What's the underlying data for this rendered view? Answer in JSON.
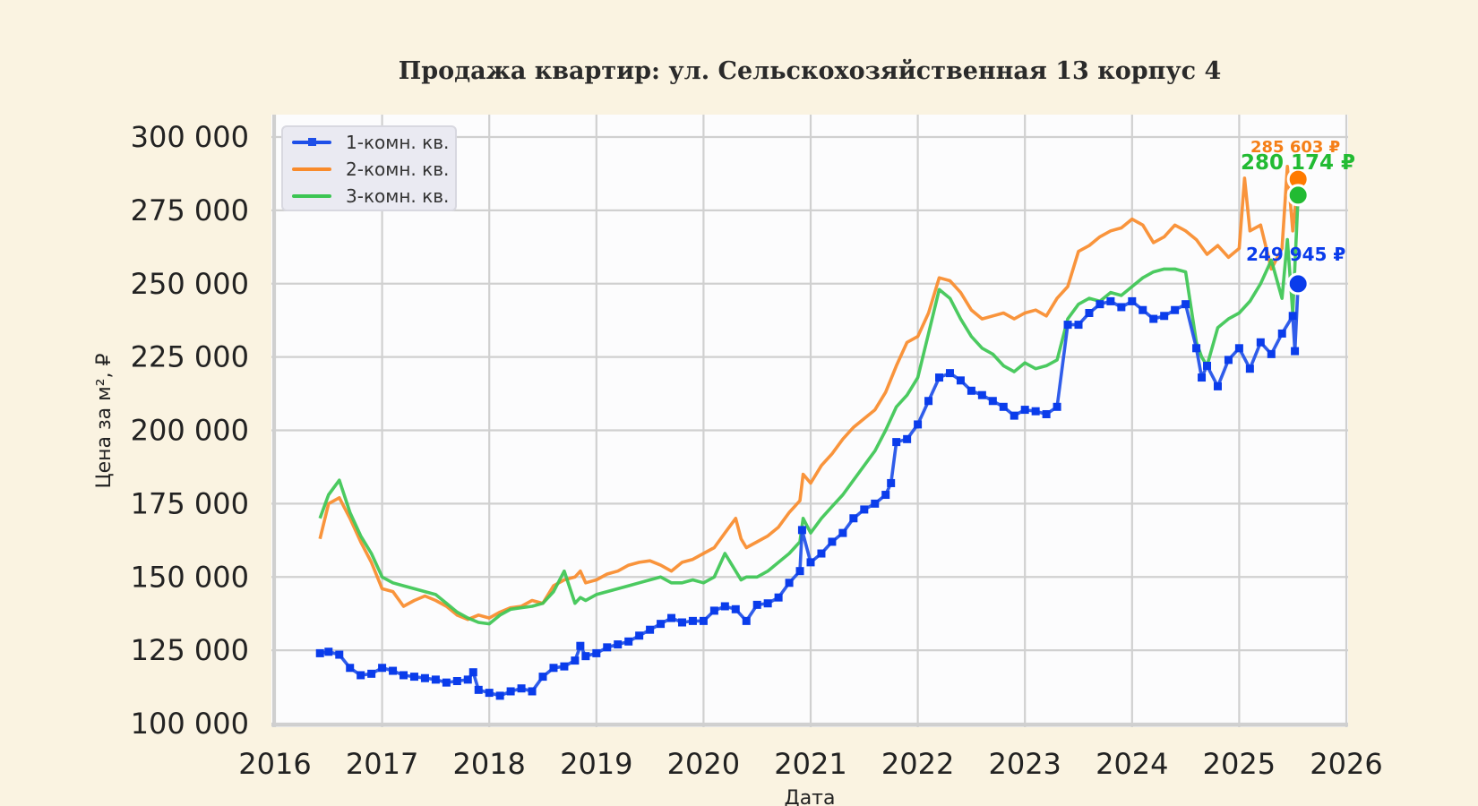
{
  "title": "Продажа квартир: ул. Сельскохозяйственная 13 корпус 4",
  "legend": [
    {
      "label": "1-комн. кв.",
      "color": "#1E4FE8",
      "marker": "square"
    },
    {
      "label": "2-комн. кв.",
      "color": "#F98B2B",
      "marker": "none"
    },
    {
      "label": "3-комн. кв.",
      "color": "#3CC553",
      "marker": "none"
    }
  ],
  "annotations": [
    {
      "series": "2-комн. кв.",
      "text": "285 603 ₽",
      "color": "#F57F17",
      "dot_color": "#FF7A00"
    },
    {
      "series": "3-комн. кв.",
      "text": "280 174 ₽",
      "color": "#22BB33",
      "dot_color": "#22BB33"
    },
    {
      "series": "1-комн. кв.",
      "text": "249 945 ₽",
      "color": "#0A3CEB",
      "dot_color": "#0A3CEB"
    }
  ],
  "chart_data": {
    "type": "line",
    "title": "Продажа квартир: ул. Сельскохозяйственная 13 корпус 4",
    "xlabel": "Дата",
    "ylabel": "Цена за м², ₽",
    "xlim": [
      2016,
      2026
    ],
    "ylim": [
      100000,
      300000
    ],
    "x_ticks": [
      "2016",
      "2017",
      "2018",
      "2019",
      "2020",
      "2021",
      "2022",
      "2023",
      "2024",
      "2025",
      "2026"
    ],
    "y_ticks": [
      "100 000",
      "125 000",
      "150 000",
      "175 000",
      "200 000",
      "225 000",
      "250 000",
      "275 000",
      "300 000"
    ],
    "y_tick_values": [
      100000,
      125000,
      150000,
      175000,
      200000,
      225000,
      250000,
      275000,
      300000
    ],
    "grid": true,
    "legend_position": "upper left",
    "series": [
      {
        "name": "1-комн. кв.",
        "color": "#1E4FE8",
        "marker": "square",
        "x": [
          2016.42,
          2016.5,
          2016.6,
          2016.7,
          2016.8,
          2016.9,
          2017.0,
          2017.1,
          2017.2,
          2017.3,
          2017.4,
          2017.5,
          2017.6,
          2017.7,
          2017.8,
          2017.85,
          2017.9,
          2018.0,
          2018.1,
          2018.2,
          2018.3,
          2018.4,
          2018.5,
          2018.6,
          2018.7,
          2018.8,
          2018.85,
          2018.9,
          2019.0,
          2019.1,
          2019.2,
          2019.3,
          2019.4,
          2019.5,
          2019.6,
          2019.7,
          2019.8,
          2019.9,
          2020.0,
          2020.1,
          2020.2,
          2020.3,
          2020.4,
          2020.5,
          2020.6,
          2020.7,
          2020.8,
          2020.9,
          2020.92,
          2021.0,
          2021.1,
          2021.2,
          2021.3,
          2021.4,
          2021.5,
          2021.6,
          2021.7,
          2021.75,
          2021.8,
          2021.9,
          2022.0,
          2022.1,
          2022.2,
          2022.3,
          2022.4,
          2022.5,
          2022.6,
          2022.7,
          2022.8,
          2022.9,
          2023.0,
          2023.1,
          2023.2,
          2023.3,
          2023.4,
          2023.5,
          2023.6,
          2023.7,
          2023.8,
          2023.9,
          2024.0,
          2024.1,
          2024.2,
          2024.3,
          2024.4,
          2024.5,
          2024.6,
          2024.65,
          2024.7,
          2024.8,
          2024.9,
          2025.0,
          2025.1,
          2025.2,
          2025.3,
          2025.4,
          2025.5,
          2025.52,
          2025.55
        ],
        "y": [
          124000,
          124500,
          123500,
          119000,
          116500,
          117000,
          119000,
          118000,
          116500,
          116000,
          115500,
          115000,
          114000,
          114500,
          115000,
          117500,
          111500,
          110500,
          109500,
          111000,
          112000,
          111000,
          116000,
          119000,
          119500,
          121500,
          126500,
          123000,
          124000,
          126000,
          127000,
          128000,
          130000,
          132000,
          134000,
          136000,
          134500,
          135000,
          135000,
          138500,
          140000,
          139000,
          135000,
          140500,
          141000,
          143000,
          148000,
          152000,
          166000,
          155000,
          158000,
          162000,
          165000,
          170000,
          173000,
          175000,
          178000,
          182000,
          196000,
          197000,
          202000,
          210000,
          218000,
          219500,
          217000,
          213500,
          212000,
          210000,
          208000,
          205000,
          207000,
          206500,
          205500,
          208000,
          236000,
          236000,
          240000,
          243000,
          244000,
          242000,
          244000,
          241000,
          238000,
          239000,
          241000,
          243000,
          228000,
          218000,
          222000,
          215000,
          224000,
          228000,
          221000,
          230000,
          226000,
          233000,
          239000,
          227000,
          249945
        ]
      },
      {
        "name": "2-комн. кв.",
        "color": "#F98B2B",
        "marker": "none",
        "x": [
          2016.42,
          2016.5,
          2016.6,
          2016.7,
          2016.8,
          2016.9,
          2017.0,
          2017.1,
          2017.2,
          2017.3,
          2017.4,
          2017.5,
          2017.6,
          2017.7,
          2017.8,
          2017.9,
          2018.0,
          2018.1,
          2018.2,
          2018.3,
          2018.4,
          2018.5,
          2018.6,
          2018.7,
          2018.8,
          2018.85,
          2018.9,
          2019.0,
          2019.1,
          2019.2,
          2019.3,
          2019.4,
          2019.5,
          2019.6,
          2019.7,
          2019.8,
          2019.9,
          2020.0,
          2020.1,
          2020.2,
          2020.3,
          2020.35,
          2020.4,
          2020.5,
          2020.6,
          2020.7,
          2020.8,
          2020.9,
          2020.93,
          2021.0,
          2021.1,
          2021.2,
          2021.3,
          2021.4,
          2021.5,
          2021.6,
          2021.7,
          2021.8,
          2021.9,
          2022.0,
          2022.1,
          2022.2,
          2022.3,
          2022.4,
          2022.5,
          2022.6,
          2022.7,
          2022.8,
          2022.9,
          2023.0,
          2023.1,
          2023.2,
          2023.3,
          2023.4,
          2023.5,
          2023.6,
          2023.7,
          2023.8,
          2023.9,
          2024.0,
          2024.1,
          2024.2,
          2024.3,
          2024.4,
          2024.5,
          2024.6,
          2024.7,
          2024.8,
          2024.9,
          2025.0,
          2025.05,
          2025.1,
          2025.2,
          2025.3,
          2025.4,
          2025.45,
          2025.5,
          2025.55
        ],
        "y": [
          163000,
          175000,
          177000,
          170000,
          162000,
          155000,
          146000,
          145000,
          140000,
          142000,
          143500,
          142000,
          140000,
          137000,
          135500,
          137000,
          136000,
          138000,
          139500,
          140000,
          142000,
          141000,
          147000,
          149000,
          150000,
          152000,
          148000,
          149000,
          151000,
          152000,
          154000,
          155000,
          155500,
          154000,
          152000,
          155000,
          156000,
          158000,
          160000,
          165000,
          170000,
          163000,
          160000,
          162000,
          164000,
          167000,
          172000,
          176000,
          185000,
          182000,
          188000,
          192000,
          197000,
          201000,
          204000,
          207000,
          213000,
          222000,
          230000,
          232000,
          240000,
          252000,
          251000,
          247000,
          241000,
          238000,
          239000,
          240000,
          238000,
          240000,
          241000,
          239000,
          245000,
          249000,
          261000,
          263000,
          266000,
          268000,
          269000,
          272000,
          270000,
          264000,
          266000,
          270000,
          268000,
          265000,
          260000,
          263000,
          259000,
          262000,
          286000,
          268000,
          270000,
          255000,
          262000,
          290000,
          268000,
          285603
        ]
      },
      {
        "name": "3-комн. кв.",
        "color": "#3CC553",
        "marker": "none",
        "x": [
          2016.42,
          2016.5,
          2016.6,
          2016.7,
          2016.8,
          2016.9,
          2017.0,
          2017.1,
          2017.2,
          2017.3,
          2017.4,
          2017.5,
          2017.6,
          2017.7,
          2017.8,
          2017.9,
          2018.0,
          2018.1,
          2018.2,
          2018.3,
          2018.4,
          2018.5,
          2018.6,
          2018.7,
          2018.8,
          2018.85,
          2018.9,
          2019.0,
          2019.1,
          2019.2,
          2019.3,
          2019.4,
          2019.5,
          2019.6,
          2019.7,
          2019.8,
          2019.9,
          2020.0,
          2020.1,
          2020.2,
          2020.3,
          2020.35,
          2020.4,
          2020.5,
          2020.6,
          2020.7,
          2020.8,
          2020.9,
          2020.93,
          2021.0,
          2021.1,
          2021.2,
          2021.3,
          2021.4,
          2021.5,
          2021.6,
          2021.7,
          2021.8,
          2021.9,
          2022.0,
          2022.1,
          2022.2,
          2022.3,
          2022.4,
          2022.5,
          2022.6,
          2022.7,
          2022.8,
          2022.9,
          2023.0,
          2023.1,
          2023.2,
          2023.3,
          2023.4,
          2023.5,
          2023.6,
          2023.7,
          2023.8,
          2023.9,
          2024.0,
          2024.1,
          2024.2,
          2024.3,
          2024.4,
          2024.5,
          2024.6,
          2024.65,
          2024.7,
          2024.8,
          2024.9,
          2025.0,
          2025.1,
          2025.2,
          2025.3,
          2025.4,
          2025.45,
          2025.5,
          2025.55
        ],
        "y": [
          170000,
          178000,
          183000,
          172000,
          164000,
          158000,
          150000,
          148000,
          147000,
          146000,
          145000,
          144000,
          141000,
          138000,
          136000,
          134500,
          134000,
          137000,
          139000,
          139500,
          140000,
          141000,
          145000,
          152000,
          141000,
          143000,
          142000,
          144000,
          145000,
          146000,
          147000,
          148000,
          149000,
          150000,
          148000,
          148000,
          149000,
          148000,
          150000,
          158000,
          152000,
          149000,
          150000,
          150000,
          152000,
          155000,
          158000,
          162000,
          170000,
          165000,
          170000,
          174000,
          178000,
          183000,
          188000,
          193000,
          200000,
          208000,
          212000,
          218000,
          233000,
          248000,
          245000,
          238000,
          232000,
          228000,
          226000,
          222000,
          220000,
          223000,
          221000,
          222000,
          224000,
          238000,
          243000,
          245000,
          244000,
          247000,
          246000,
          249000,
          252000,
          254000,
          255000,
          255000,
          254000,
          230000,
          225000,
          222000,
          235000,
          238000,
          240000,
          244000,
          250000,
          258000,
          245000,
          265000,
          240000,
          280174
        ]
      }
    ],
    "annotations": [
      {
        "series": "2-комн. кв.",
        "x": 2025.55,
        "y": 285603,
        "label": "285 603 ₽"
      },
      {
        "series": "3-комн. кв.",
        "x": 2025.55,
        "y": 280174,
        "label": "280 174 ₽"
      },
      {
        "series": "1-комн. кв.",
        "x": 2025.55,
        "y": 249945,
        "label": "249 945 ₽"
      }
    ]
  }
}
